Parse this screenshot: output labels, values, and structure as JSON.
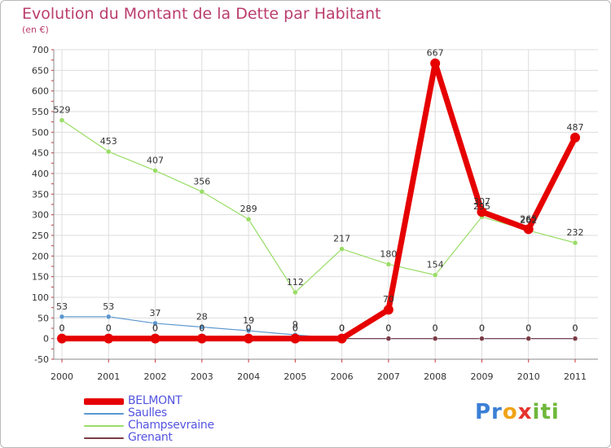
{
  "chart_data": {
    "type": "line",
    "title": "Evolution du Montant de la Dette par Habitant",
    "subtitle": "(en €)",
    "x": [
      "2000",
      "2001",
      "2002",
      "2003",
      "2004",
      "2005",
      "2006",
      "2007",
      "2008",
      "2009",
      "2010",
      "2011"
    ],
    "ylim": [
      -50,
      700
    ],
    "yticks": [
      -50,
      0,
      50,
      100,
      150,
      200,
      250,
      300,
      350,
      400,
      450,
      500,
      550,
      600,
      650,
      700
    ],
    "grid": true,
    "legend_position": "bottom-left",
    "series": [
      {
        "name": "BELMONT",
        "color": "#e60000",
        "values": [
          0,
          0,
          0,
          0,
          0,
          0,
          0,
          70,
          667,
          307,
          265,
          487
        ],
        "labels": [
          "0",
          "0",
          "0",
          "0",
          "0",
          "0",
          "0",
          "70",
          "667",
          "307",
          "265",
          "487"
        ]
      },
      {
        "name": "Saulles",
        "color": "#5b97cf",
        "values": [
          53,
          53,
          37,
          28,
          19,
          9,
          0,
          0,
          0,
          0,
          0,
          0
        ],
        "labels": [
          "53",
          "53",
          "37",
          "28",
          "19",
          "9",
          "0",
          "0",
          "0",
          "0",
          "0",
          "0"
        ]
      },
      {
        "name": "Champsevraine",
        "color": "#99dd66",
        "values": [
          529,
          453,
          407,
          356,
          289,
          112,
          217,
          180,
          154,
          295,
          262,
          232
        ],
        "labels": [
          "529",
          "453",
          "407",
          "356",
          "289",
          "112",
          "217",
          "180",
          "154",
          "295",
          "262",
          "232"
        ]
      },
      {
        "name": "Grenant",
        "color": "#7a3b46",
        "values": [
          0,
          0,
          0,
          0,
          0,
          0,
          0,
          0,
          0,
          0,
          0,
          0
        ],
        "labels": [
          "0",
          "0",
          "0",
          "0",
          "0",
          "0",
          "0",
          "0",
          "0",
          "0",
          "0",
          "0"
        ]
      }
    ]
  },
  "logo": {
    "p1": "Pr",
    "p2": "o",
    "p3": "x",
    "p4": "iti"
  }
}
